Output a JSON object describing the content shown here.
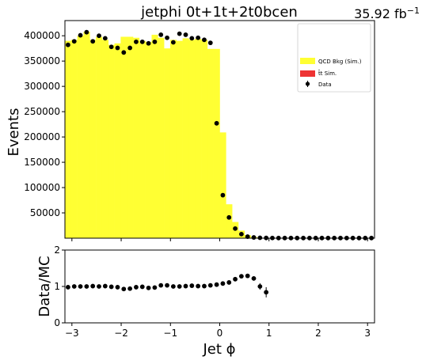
{
  "chart_data": [
    {
      "type": "bar",
      "title": "jetphi  0t+1t+2t0bcen",
      "luminosity_label": "35.92 fb",
      "luminosity_superscript": "−1",
      "ylabel": "Events",
      "xlim": [
        -3.1416,
        3.1416
      ],
      "ylim": [
        0,
        430000
      ],
      "grid": false,
      "legend_position": "top-right",
      "yticks": [
        50000,
        100000,
        150000,
        200000,
        250000,
        300000,
        350000,
        400000
      ],
      "ytick_labels": [
        "50000",
        "100000",
        "150000",
        "200000",
        "250000",
        "300000",
        "350000",
        "400000"
      ],
      "bin_edges": [
        -3.1416,
        -3.0159,
        -2.8903,
        -2.7646,
        -2.6389,
        -2.5133,
        -2.3876,
        -2.2619,
        -2.1363,
        -2.0106,
        -1.885,
        -1.7593,
        -1.6336,
        -1.508,
        -1.3823,
        -1.2566,
        -1.131,
        -1.0053,
        -0.8796,
        -0.754,
        -0.6283,
        -0.5027,
        -0.377,
        -0.2513,
        -0.1257,
        0.0,
        0.1257,
        0.2513,
        0.377,
        0.5027,
        0.6283,
        0.754,
        0.8796,
        1.0053,
        1.131,
        1.2566,
        1.3823,
        1.508,
        1.6336,
        1.7593,
        1.885,
        2.0106,
        2.1363,
        2.2619,
        2.3876,
        2.5133,
        2.6389,
        2.7646,
        2.8903,
        3.0159,
        3.1416
      ],
      "series": [
        {
          "name": "QCD Bkg (Sim.)",
          "color": "#ffff33",
          "values": [
            390000,
            392000,
            400000,
            408000,
            392000,
            398000,
            392000,
            382000,
            385000,
            398000,
            398000,
            396000,
            390000,
            388000,
            402000,
            396000,
            375000,
            392000,
            390000,
            395000,
            392000,
            394000,
            392000,
            374000,
            374000,
            209000,
            67000,
            32000,
            15000,
            6000,
            2500,
            0,
            0,
            0,
            0,
            0,
            0,
            0,
            0,
            0,
            0,
            0,
            0,
            0,
            0,
            0,
            0,
            0,
            0,
            0
          ]
        },
        {
          "name": "t̄t Sim.",
          "color": "#ee3333",
          "values": []
        },
        {
          "name": "Data",
          "color": "#000000",
          "values": [
            382000,
            389000,
            401000,
            407000,
            389000,
            400000,
            395000,
            378000,
            376000,
            367000,
            376000,
            388000,
            388000,
            385000,
            388000,
            402000,
            396000,
            387000,
            404000,
            402000,
            395000,
            396000,
            392000,
            386000,
            227000,
            85000,
            41000,
            19000,
            8000,
            3000,
            1500,
            800,
            500,
            400,
            300,
            300,
            300,
            300,
            300,
            300,
            300,
            300,
            300,
            300,
            300,
            300,
            300,
            300,
            300,
            300
          ]
        }
      ]
    },
    {
      "type": "scatter",
      "ylabel": "Data/MC",
      "xlabel": "Jet ϕ",
      "xlim": [
        -3.1416,
        3.1416
      ],
      "ylim": [
        0,
        2
      ],
      "grid": false,
      "xticks": [
        -3,
        -2,
        -1,
        0,
        1,
        2,
        3
      ],
      "xtick_labels": [
        "−3",
        "−2",
        "−1",
        "0",
        "1",
        "2",
        "3"
      ],
      "yticks": [
        0,
        1,
        2
      ],
      "ytick_labels": [
        "0",
        "1",
        "2"
      ],
      "x": [
        -3.0788,
        -2.9531,
        -2.8274,
        -2.7018,
        -2.5761,
        -2.4504,
        -2.3248,
        -2.1991,
        -2.0735,
        -1.9478,
        -1.8221,
        -1.6965,
        -1.5708,
        -1.4451,
        -1.3195,
        -1.1938,
        -1.0681,
        -0.9425,
        -0.8168,
        -0.6912,
        -0.5655,
        -0.4398,
        -0.3142,
        -0.1885,
        -0.0628,
        0.0628,
        0.1885,
        0.3142,
        0.4398,
        0.5655,
        0.6912,
        0.8168,
        0.9425
      ],
      "y": [
        0.98,
        1.0,
        1.0,
        1.0,
        1.01,
        1.0,
        1.01,
        0.99,
        0.98,
        0.93,
        0.94,
        0.98,
        0.99,
        0.96,
        0.97,
        1.03,
        1.03,
        1.0,
        1.0,
        1.01,
        1.02,
        1.01,
        1.01,
        1.03,
        1.05,
        1.08,
        1.11,
        1.2,
        1.28,
        1.29,
        1.22,
        1.0,
        0.84
      ],
      "yerr": [
        0.01,
        0.01,
        0.01,
        0.01,
        0.01,
        0.01,
        0.01,
        0.01,
        0.01,
        0.01,
        0.01,
        0.01,
        0.01,
        0.01,
        0.01,
        0.01,
        0.01,
        0.01,
        0.01,
        0.01,
        0.01,
        0.01,
        0.01,
        0.01,
        0.01,
        0.01,
        0.02,
        0.02,
        0.03,
        0.05,
        0.06,
        0.09,
        0.14
      ]
    }
  ]
}
